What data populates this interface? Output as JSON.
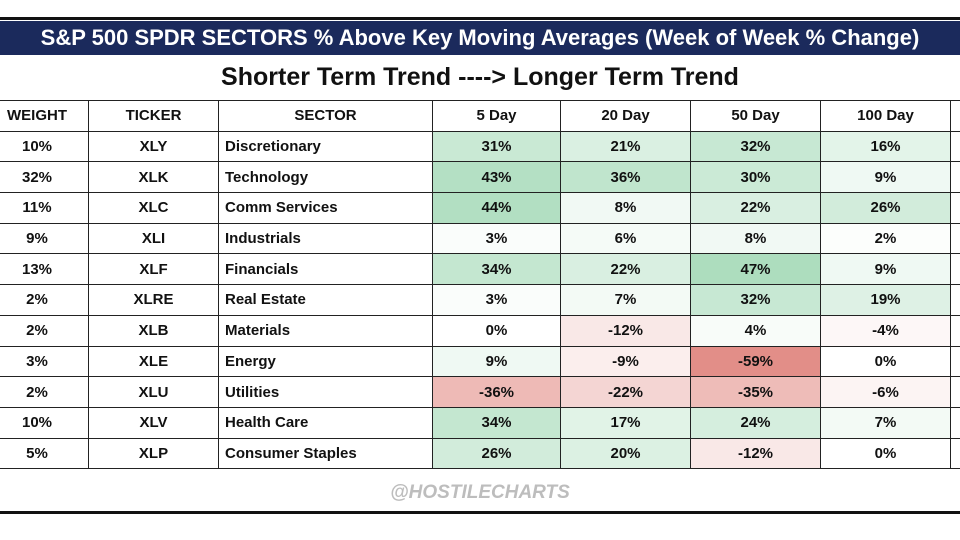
{
  "header": {
    "title": "S&P 500 SPDR SECTORS % Above Key Moving Averages (Week of Week % Change)",
    "subtitle": "Shorter Term Trend ----> Longer Term Trend"
  },
  "table": {
    "columns": [
      "WEIGHT",
      "TICKER",
      "SECTOR",
      "5 Day",
      "20 Day",
      "50 Day",
      "100 Day"
    ],
    "rows": [
      [
        "10%",
        "XLY",
        "Discretionary",
        "31%",
        "21%",
        "32%",
        "16%"
      ],
      [
        "32%",
        "XLK",
        "Technology",
        "43%",
        "36%",
        "30%",
        "9%"
      ],
      [
        "11%",
        "XLC",
        "Comm Services",
        "44%",
        "8%",
        "22%",
        "26%"
      ],
      [
        "9%",
        "XLI",
        "Industrials",
        "3%",
        "6%",
        "8%",
        "2%"
      ],
      [
        "13%",
        "XLF",
        "Financials",
        "34%",
        "22%",
        "47%",
        "9%"
      ],
      [
        "2%",
        "XLRE",
        "Real Estate",
        "3%",
        "7%",
        "32%",
        "19%"
      ],
      [
        "2%",
        "XLB",
        "Materials",
        "0%",
        "-12%",
        "4%",
        "-4%"
      ],
      [
        "3%",
        "XLE",
        "Energy",
        "9%",
        "-9%",
        "-59%",
        "0%"
      ],
      [
        "2%",
        "XLU",
        "Utilities",
        "-36%",
        "-22%",
        "-35%",
        "-6%"
      ],
      [
        "10%",
        "XLV",
        "Health Care",
        "34%",
        "17%",
        "24%",
        "7%"
      ],
      [
        "5%",
        "XLP",
        "Consumer Staples",
        "26%",
        "20%",
        "-12%",
        "0%"
      ]
    ]
  },
  "watermark": "@HOSTILECHARTS"
}
